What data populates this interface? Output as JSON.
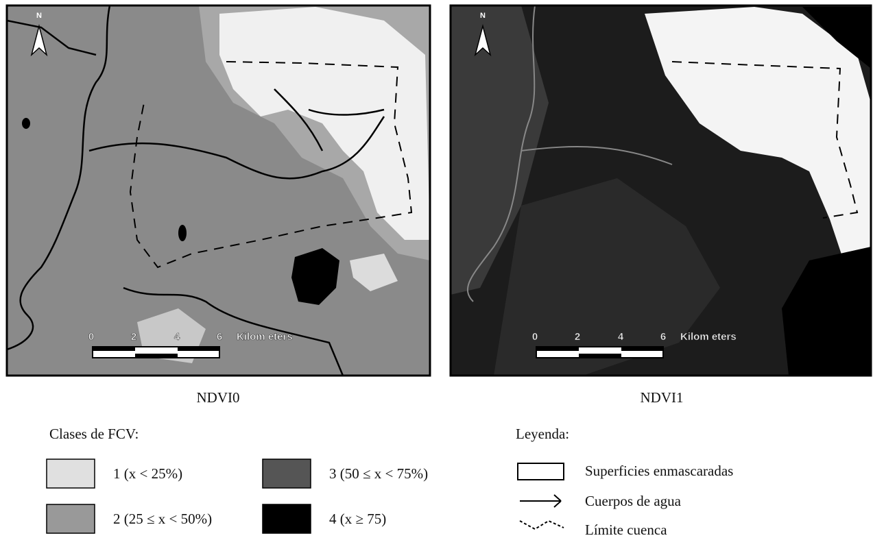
{
  "maps": [
    {
      "caption": "NDVI0",
      "north": "N",
      "scale": {
        "ticks": [
          "0",
          "2",
          "4",
          "6"
        ],
        "unit": "Kilom eters"
      }
    },
    {
      "caption": "NDVI1",
      "north": "N",
      "scale": {
        "ticks": [
          "0",
          "2",
          "4",
          "6"
        ],
        "unit": "Kilom eters"
      }
    }
  ],
  "fcv_legend": {
    "title": "Clases de FCV:",
    "items": [
      "1 (x < 25%)",
      "2 (25 ≤ x < 50%)",
      "3 (50 ≤ x < 75%)",
      "4 (x ≥ 75)"
    ]
  },
  "legend": {
    "title": "Leyenda:",
    "items": [
      "Superficies enmascaradas",
      "Cuerpos de agua",
      "Límite cuenca"
    ]
  }
}
